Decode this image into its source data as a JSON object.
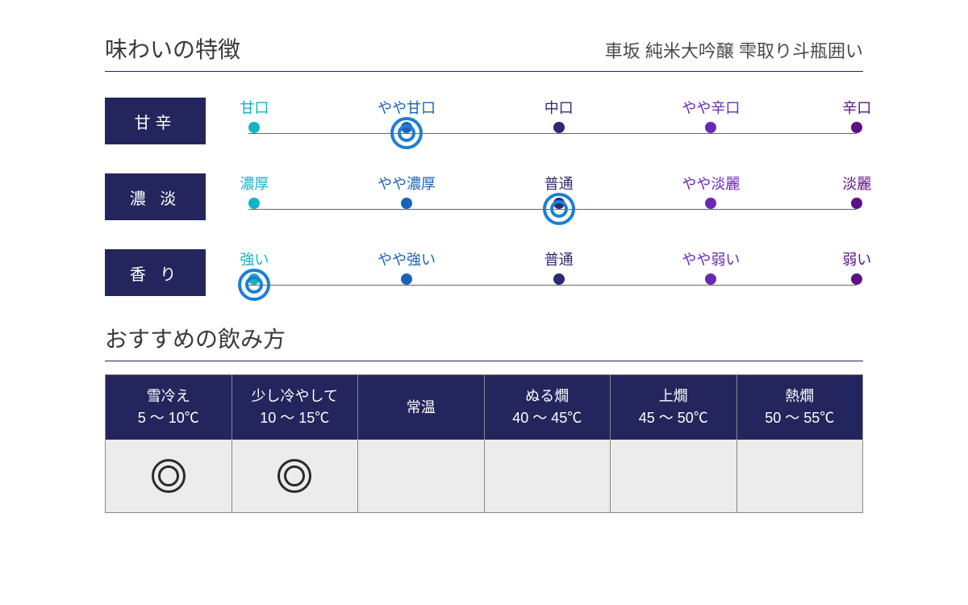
{
  "colors": {
    "navy": "#25255e",
    "body_bg": "#ececec",
    "text": "#3a3a3a",
    "line": "#666666",
    "ring": "#1b7fd6"
  },
  "taste": {
    "title": "味わいの特徴",
    "product_name": "車坂 純米大吟醸 雫取り斗瓶囲い",
    "point_colors": [
      "#12b3c7",
      "#1b63b8",
      "#2b2b70",
      "#6a29b5",
      "#5e1185"
    ],
    "scales": [
      {
        "label": "甘辛",
        "points": [
          "甘口",
          "やや甘口",
          "中口",
          "やや辛口",
          "辛口"
        ],
        "selected_index": 1
      },
      {
        "label": "濃 淡",
        "points": [
          "濃厚",
          "やや濃厚",
          "普通",
          "やや淡麗",
          "淡麗"
        ],
        "selected_index": 2
      },
      {
        "label": "香 り",
        "points": [
          "強い",
          "やや強い",
          "普通",
          "やや弱い",
          "弱い"
        ],
        "selected_index": 0
      }
    ]
  },
  "serving": {
    "title": "おすすめの飲み方",
    "temps": [
      {
        "name": "雪冷え",
        "range": "5 ～ 10℃",
        "mark": "double"
      },
      {
        "name": "少し冷やして",
        "range": "10 ～ 15℃",
        "mark": "double"
      },
      {
        "name": "常温",
        "range": "",
        "mark": ""
      },
      {
        "name": "ぬる燗",
        "range": "40 ～ 45℃",
        "mark": ""
      },
      {
        "name": "上燗",
        "range": "45 ～ 50℃",
        "mark": ""
      },
      {
        "name": "熱燗",
        "range": "50 ～ 55℃",
        "mark": ""
      }
    ]
  },
  "layout": {
    "point_positions_pct": [
      2,
      26.5,
      51,
      75.5,
      99
    ]
  }
}
